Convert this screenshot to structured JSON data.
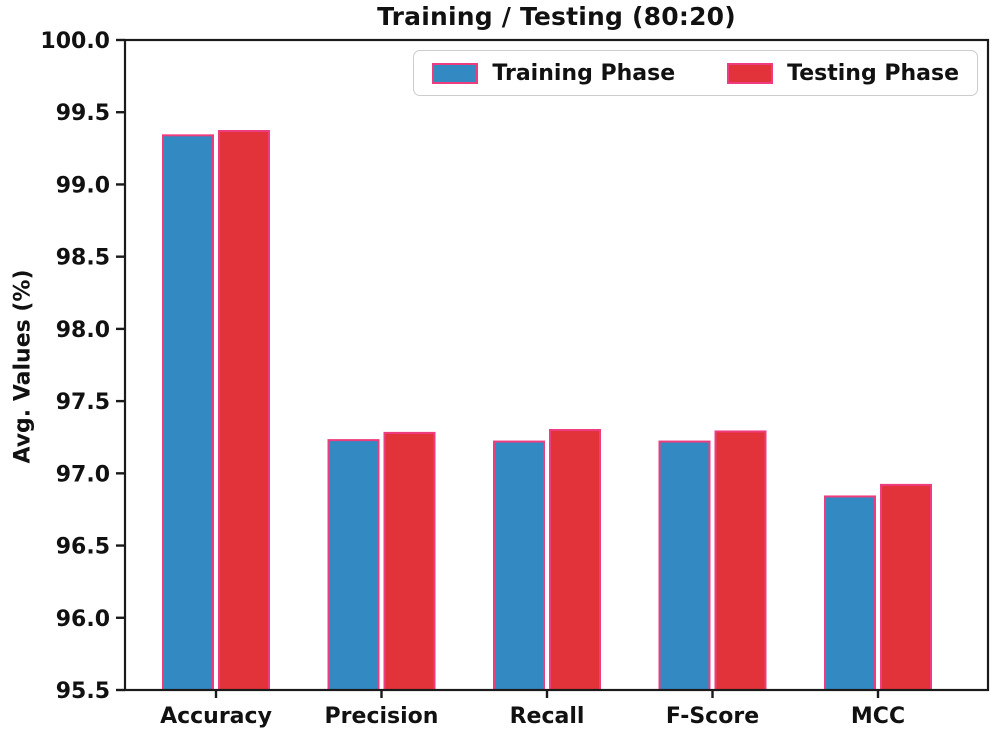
{
  "chart_data": {
    "type": "bar",
    "title": "Training / Testing (80:20)",
    "xlabel": "",
    "ylabel": "Avg. Values (%)",
    "categories": [
      "Accuracy",
      "Precision",
      "Recall",
      "F-Score",
      "MCC"
    ],
    "series": [
      {
        "name": "Training Phase",
        "color": "#338ac2",
        "values": [
          99.34,
          97.23,
          97.22,
          97.22,
          96.84
        ]
      },
      {
        "name": "Testing Phase",
        "color": "#e3333a",
        "values": [
          99.37,
          97.28,
          97.3,
          97.29,
          96.92
        ]
      }
    ],
    "bar_edge_color": "#ee3d7f",
    "axis_color": "#1a1a1a",
    "ylim": [
      95.5,
      100.0
    ],
    "ytick_step": 0.5,
    "ytick_format_decimals": 1,
    "grid": false,
    "legend_position": "upper right"
  }
}
